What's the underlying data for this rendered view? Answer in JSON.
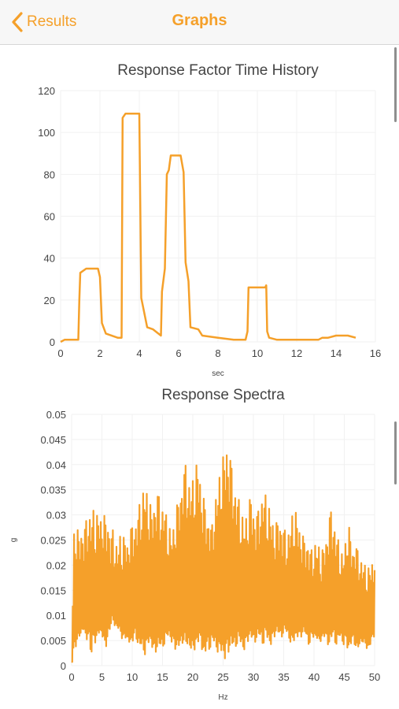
{
  "nav": {
    "back_label": "Results",
    "title": "Graphs",
    "back_icon": "chevron-left-icon",
    "accent_color": "#f5a02a"
  },
  "chart_data": [
    {
      "type": "line",
      "title": "Response Factor Time History",
      "xlabel": "sec",
      "ylabel": "",
      "xlim": [
        0,
        16
      ],
      "ylim": [
        0,
        120
      ],
      "xticks": [
        0,
        2,
        4,
        6,
        8,
        10,
        12,
        14,
        16
      ],
      "yticks": [
        0,
        20,
        40,
        60,
        80,
        100,
        120
      ],
      "grid": true,
      "color": "#f5a02a",
      "series": [
        {
          "x": [
            0,
            0.2,
            0.9,
            0.95,
            1.0,
            1.3,
            1.9,
            2.0,
            2.1,
            2.3,
            2.9,
            3.1,
            3.15,
            3.3,
            3.5,
            4.0,
            4.1,
            4.4,
            4.7,
            5.1,
            5.15,
            5.3,
            5.4,
            5.5,
            5.6,
            5.65,
            6.1,
            6.25,
            6.35,
            6.5,
            6.6,
            7.0,
            7.2,
            8.0,
            8.8,
            9.4,
            9.5,
            9.55,
            10.4,
            10.45,
            10.5,
            10.6,
            11.0,
            12.0,
            13.1,
            13.3,
            13.6,
            14.0,
            14.2,
            14.6,
            15.0
          ],
          "y": [
            0,
            1,
            1,
            20,
            33,
            35,
            35,
            31,
            9,
            4,
            2,
            2,
            107,
            109,
            109,
            109,
            21,
            7,
            6,
            3,
            24,
            35,
            80,
            82,
            89,
            89,
            89,
            81,
            38,
            29,
            7,
            6,
            3,
            2,
            1,
            1,
            5,
            26,
            26,
            27,
            5,
            2,
            1,
            1,
            1,
            2,
            2,
            3,
            3,
            3,
            2
          ]
        }
      ]
    },
    {
      "type": "line",
      "title": "Response Spectra",
      "xlabel": "Hz",
      "ylabel": "g",
      "xlim": [
        0,
        50
      ],
      "ylim": [
        0,
        0.05
      ],
      "xticks": [
        0,
        5,
        10,
        15,
        20,
        25,
        30,
        35,
        40,
        45,
        50
      ],
      "yticks": [
        0,
        0.005,
        0.01,
        0.015,
        0.02,
        0.025,
        0.03,
        0.035,
        0.04,
        0.045,
        0.05
      ],
      "grid": true,
      "color": "#f5a02a",
      "peaks_x": [
        0,
        0.4,
        0.8,
        1.2,
        1.6,
        2.0,
        2.4,
        2.8,
        3.2,
        3.6,
        4.0,
        4.4,
        4.8,
        5.2,
        5.6,
        6.0,
        6.4,
        6.8,
        7.2,
        7.6,
        8.0,
        8.4,
        8.8,
        9.2,
        9.6,
        10.0,
        10.4,
        10.8,
        11.2,
        11.6,
        12.0,
        12.4,
        12.8,
        13.2,
        13.6,
        14.0,
        14.4,
        14.8,
        15.2,
        15.6,
        16.0,
        16.4,
        16.8,
        17.2,
        17.6,
        18.0,
        18.4,
        18.8,
        19.2,
        19.6,
        20.0,
        20.4,
        20.8,
        21.2,
        21.6,
        22.0,
        22.4,
        22.8,
        23.2,
        23.6,
        24.0,
        24.4,
        24.8,
        25.2,
        25.6,
        26.0,
        26.4,
        26.8,
        27.2,
        27.6,
        28.0,
        28.4,
        28.8,
        29.2,
        29.6,
        30.0,
        30.4,
        30.8,
        31.2,
        31.6,
        32.0,
        32.4,
        32.8,
        33.2,
        33.6,
        34.0,
        34.4,
        34.8,
        35.2,
        35.6,
        36.0,
        36.4,
        36.8,
        37.2,
        37.6,
        38.0,
        38.4,
        38.8,
        39.2,
        39.6,
        40.0,
        40.4,
        40.8,
        41.2,
        41.6,
        42.0,
        42.4,
        42.8,
        43.2,
        43.6,
        44.0,
        44.4,
        44.8,
        45.2,
        45.6,
        46.0,
        46.4,
        46.8,
        47.2,
        47.6,
        48.0,
        48.4,
        48.8,
        49.2,
        49.6,
        50.0
      ],
      "peaks_hi": [
        0.001,
        0.027,
        0.028,
        0.026,
        0.028,
        0.027,
        0.029,
        0.031,
        0.03,
        0.031,
        0.029,
        0.031,
        0.03,
        0.031,
        0.029,
        0.03,
        0.026,
        0.027,
        0.025,
        0.024,
        0.026,
        0.025,
        0.026,
        0.025,
        0.027,
        0.028,
        0.029,
        0.03,
        0.032,
        0.034,
        0.036,
        0.035,
        0.033,
        0.031,
        0.033,
        0.035,
        0.034,
        0.032,
        0.033,
        0.03,
        0.028,
        0.027,
        0.028,
        0.031,
        0.033,
        0.036,
        0.039,
        0.04,
        0.038,
        0.036,
        0.037,
        0.039,
        0.041,
        0.038,
        0.035,
        0.032,
        0.031,
        0.029,
        0.028,
        0.033,
        0.035,
        0.038,
        0.041,
        0.042,
        0.045,
        0.043,
        0.04,
        0.037,
        0.035,
        0.033,
        0.031,
        0.029,
        0.03,
        0.032,
        0.034,
        0.032,
        0.03,
        0.031,
        0.033,
        0.035,
        0.034,
        0.032,
        0.031,
        0.029,
        0.028,
        0.029,
        0.03,
        0.028,
        0.027,
        0.026,
        0.028,
        0.03,
        0.031,
        0.03,
        0.028,
        0.027,
        0.025,
        0.026,
        0.024,
        0.023,
        0.024,
        0.025,
        0.024,
        0.022,
        0.024,
        0.026,
        0.029,
        0.031,
        0.03,
        0.027,
        0.025,
        0.023,
        0.022,
        0.025,
        0.029,
        0.026,
        0.024,
        0.025,
        0.023,
        0.022,
        0.021,
        0.02,
        0.019,
        0.02,
        0.021,
        0.019
      ],
      "peaks_lo": [
        0.0,
        0.003,
        0.004,
        0.006,
        0.005,
        0.008,
        0.004,
        0.006,
        0.002,
        0.005,
        0.004,
        0.007,
        0.005,
        0.006,
        0.003,
        0.005,
        0.008,
        0.009,
        0.007,
        0.008,
        0.006,
        0.005,
        0.006,
        0.004,
        0.005,
        0.004,
        0.006,
        0.005,
        0.003,
        0.004,
        0.002,
        0.003,
        0.005,
        0.004,
        0.002,
        0.003,
        0.004,
        0.003,
        0.004,
        0.005,
        0.006,
        0.005,
        0.004,
        0.003,
        0.004,
        0.003,
        0.005,
        0.004,
        0.003,
        0.004,
        0.002,
        0.003,
        0.005,
        0.004,
        0.003,
        0.002,
        0.004,
        0.003,
        0.005,
        0.004,
        0.003,
        0.002,
        0.003,
        0.001,
        0.002,
        0.003,
        0.004,
        0.003,
        0.004,
        0.005,
        0.004,
        0.003,
        0.004,
        0.005,
        0.006,
        0.004,
        0.005,
        0.006,
        0.005,
        0.004,
        0.006,
        0.005,
        0.004,
        0.005,
        0.006,
        0.007,
        0.005,
        0.006,
        0.007,
        0.006,
        0.005,
        0.004,
        0.005,
        0.006,
        0.005,
        0.006,
        0.007,
        0.005,
        0.004,
        0.006,
        0.005,
        0.006,
        0.004,
        0.005,
        0.006,
        0.005,
        0.004,
        0.005,
        0.006,
        0.004,
        0.005,
        0.006,
        0.004,
        0.005,
        0.003,
        0.004,
        0.005,
        0.004,
        0.003,
        0.004,
        0.005,
        0.004,
        0.003,
        0.004,
        0.005,
        0.006
      ]
    }
  ]
}
